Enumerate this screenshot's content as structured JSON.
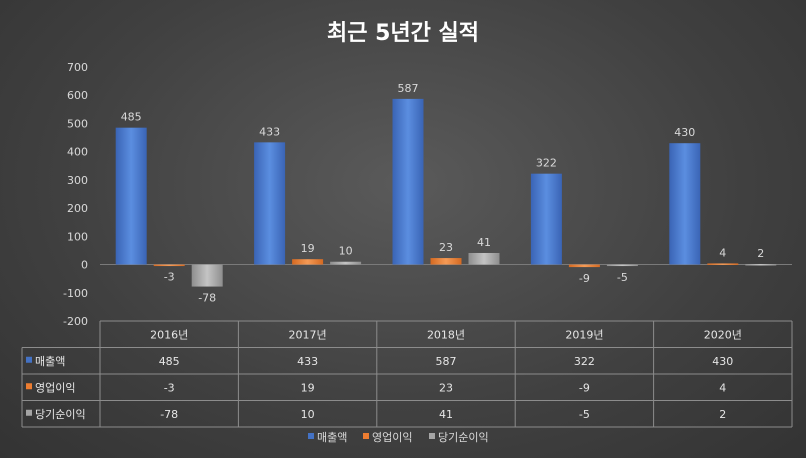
{
  "chart_data": {
    "type": "bar",
    "title": "최근 5년간 실적",
    "categories": [
      "2016년",
      "2017년",
      "2018년",
      "2019년",
      "2020년"
    ],
    "series": [
      {
        "name": "매출액",
        "values": [
          485,
          433,
          587,
          322,
          430
        ],
        "color": "#4472C4"
      },
      {
        "name": "영업이익",
        "values": [
          -3,
          19,
          23,
          -9,
          4
        ],
        "color": "#ED7D31"
      },
      {
        "name": "당기순이익",
        "values": [
          -78,
          10,
          41,
          -5,
          2
        ],
        "color": "#A5A5A5"
      }
    ],
    "ylim": [
      -200,
      700
    ],
    "yticks": [
      -200,
      -100,
      0,
      100,
      200,
      300,
      400,
      500,
      600,
      700
    ],
    "grid": false,
    "data_table": true,
    "legend_position": "bottom"
  }
}
